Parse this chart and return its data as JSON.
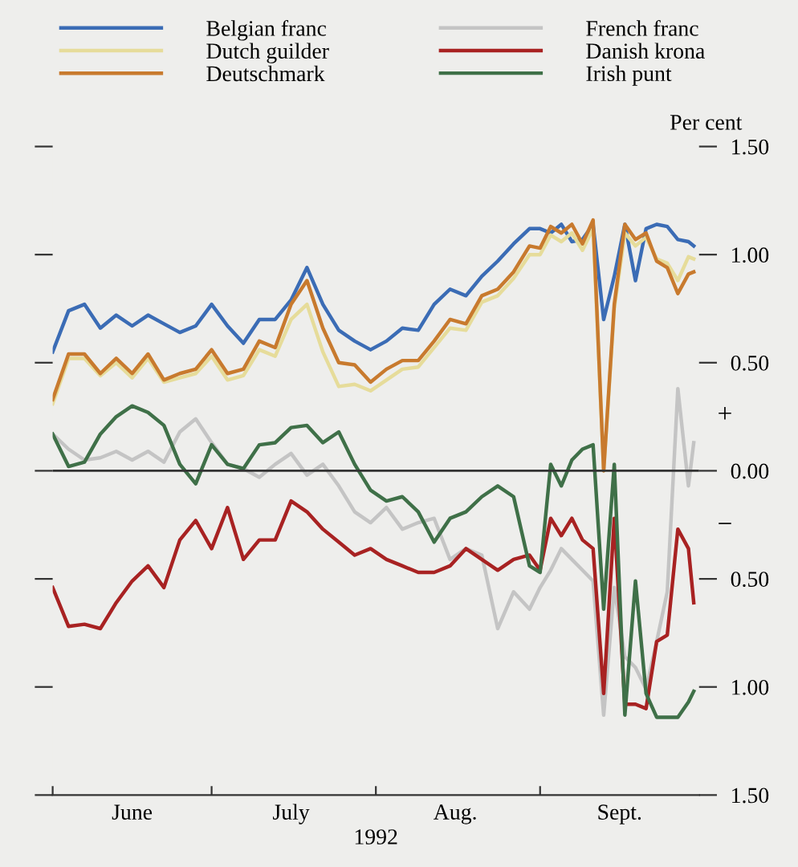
{
  "chart_data": {
    "type": "line",
    "xlabel": "1992",
    "ylabel": "Per cent",
    "x": [
      "1992-06-01",
      "1992-06-04",
      "1992-06-07",
      "1992-06-10",
      "1992-06-13",
      "1992-06-16",
      "1992-06-19",
      "1992-06-22",
      "1992-06-25",
      "1992-06-28",
      "1992-07-01",
      "1992-07-04",
      "1992-07-07",
      "1992-07-10",
      "1992-07-13",
      "1992-07-16",
      "1992-07-19",
      "1992-07-22",
      "1992-07-25",
      "1992-07-28",
      "1992-07-31",
      "1992-08-03",
      "1992-08-06",
      "1992-08-09",
      "1992-08-12",
      "1992-08-15",
      "1992-08-18",
      "1992-08-21",
      "1992-08-24",
      "1992-08-27",
      "1992-08-30",
      "1992-09-01",
      "1992-09-03",
      "1992-09-05",
      "1992-09-07",
      "1992-09-09",
      "1992-09-11",
      "1992-09-13",
      "1992-09-15",
      "1992-09-17",
      "1992-09-19",
      "1992-09-21",
      "1992-09-23",
      "1992-09-25",
      "1992-09-27",
      "1992-09-29",
      "1992-09-30"
    ],
    "series": [
      {
        "name": "Belgian franc",
        "color": "#3b6cb5",
        "values": [
          0.55,
          0.74,
          0.77,
          0.66,
          0.72,
          0.67,
          0.72,
          0.68,
          0.64,
          0.67,
          0.77,
          0.67,
          0.59,
          0.7,
          0.7,
          0.79,
          0.94,
          0.77,
          0.65,
          0.6,
          0.56,
          0.6,
          0.66,
          0.65,
          0.77,
          0.84,
          0.81,
          0.9,
          0.97,
          1.05,
          1.12,
          1.12,
          1.1,
          1.14,
          1.06,
          1.07,
          1.14,
          0.7,
          0.9,
          1.14,
          0.88,
          1.12,
          1.14,
          1.13,
          1.07,
          1.06,
          1.04
        ]
      },
      {
        "name": "Dutch guilder",
        "color": "#e6dc9a",
        "values": [
          0.31,
          0.52,
          0.52,
          0.44,
          0.5,
          0.43,
          0.52,
          0.41,
          0.43,
          0.45,
          0.53,
          0.42,
          0.44,
          0.56,
          0.53,
          0.7,
          0.77,
          0.55,
          0.39,
          0.4,
          0.37,
          0.42,
          0.47,
          0.48,
          0.57,
          0.66,
          0.65,
          0.78,
          0.81,
          0.89,
          1.0,
          1.0,
          1.09,
          1.06,
          1.1,
          1.02,
          1.12,
          0.0,
          0.75,
          1.1,
          1.04,
          1.08,
          0.98,
          0.96,
          0.88,
          0.99,
          0.98
        ]
      },
      {
        "name": "Deutschmark",
        "color": "#c87a2e",
        "values": [
          0.33,
          0.54,
          0.54,
          0.45,
          0.52,
          0.45,
          0.54,
          0.42,
          0.45,
          0.47,
          0.56,
          0.45,
          0.47,
          0.6,
          0.57,
          0.77,
          0.88,
          0.66,
          0.5,
          0.49,
          0.41,
          0.47,
          0.51,
          0.51,
          0.6,
          0.7,
          0.68,
          0.81,
          0.84,
          0.92,
          1.04,
          1.03,
          1.13,
          1.1,
          1.14,
          1.05,
          1.16,
          0.0,
          0.77,
          1.14,
          1.07,
          1.1,
          0.97,
          0.94,
          0.82,
          0.91,
          0.92
        ]
      },
      {
        "name": "French franc",
        "color": "#c4c4c4",
        "values": [
          0.17,
          0.1,
          0.05,
          0.06,
          0.09,
          0.05,
          0.09,
          0.04,
          0.18,
          0.24,
          0.13,
          0.03,
          0.01,
          -0.03,
          0.03,
          0.08,
          -0.02,
          0.03,
          -0.07,
          -0.19,
          -0.24,
          -0.17,
          -0.27,
          -0.24,
          -0.22,
          -0.41,
          -0.36,
          -0.39,
          -0.73,
          -0.56,
          -0.64,
          -0.54,
          -0.46,
          -0.36,
          -0.41,
          -0.46,
          -0.51,
          -1.13,
          -0.54,
          -0.86,
          -0.91,
          -1.01,
          -0.79,
          -0.56,
          0.38,
          -0.07,
          0.13
        ]
      },
      {
        "name": "Danish krona",
        "color": "#a82222",
        "values": [
          -0.54,
          -0.72,
          -0.71,
          -0.73,
          -0.61,
          -0.51,
          -0.44,
          -0.54,
          -0.32,
          -0.23,
          -0.36,
          -0.17,
          -0.41,
          -0.32,
          -0.32,
          -0.14,
          -0.19,
          -0.27,
          -0.33,
          -0.39,
          -0.36,
          -0.41,
          -0.44,
          -0.47,
          -0.47,
          -0.44,
          -0.36,
          -0.41,
          -0.46,
          -0.41,
          -0.39,
          -0.46,
          -0.22,
          -0.3,
          -0.22,
          -0.32,
          -0.36,
          -1.03,
          -0.22,
          -1.08,
          -1.08,
          -1.1,
          -0.79,
          -0.76,
          -0.27,
          -0.36,
          -0.61
        ]
      },
      {
        "name": "Irish punt",
        "color": "#3f7048",
        "values": [
          0.17,
          0.02,
          0.04,
          0.17,
          0.25,
          0.3,
          0.27,
          0.21,
          0.03,
          -0.06,
          0.12,
          0.03,
          0.01,
          0.12,
          0.13,
          0.2,
          0.21,
          0.13,
          0.18,
          0.03,
          -0.09,
          -0.14,
          -0.12,
          -0.19,
          -0.33,
          -0.22,
          -0.19,
          -0.12,
          -0.07,
          -0.12,
          -0.44,
          -0.47,
          0.03,
          -0.07,
          0.05,
          0.1,
          0.12,
          -0.64,
          0.03,
          -1.13,
          -0.51,
          -1.03,
          -1.14,
          -1.14,
          -1.14,
          -1.07,
          -1.02
        ]
      }
    ],
    "xlim": [
      "1992-06-01",
      "1992-10-01"
    ],
    "xticks": [
      {
        "value": "1992-06-01",
        "label": null
      },
      {
        "value": "1992-06-16",
        "label": "June"
      },
      {
        "value": "1992-07-01",
        "label": null
      },
      {
        "value": "1992-07-16",
        "label": "July"
      },
      {
        "value": "1992-08-01",
        "label": null
      },
      {
        "value": "1992-08-16",
        "label": "Aug."
      },
      {
        "value": "1992-09-01",
        "label": null
      },
      {
        "value": "1992-09-16",
        "label": "Sept."
      }
    ],
    "ylim": [
      -1.5,
      1.5
    ],
    "yticks": [
      {
        "value": 1.5,
        "label": "1.50"
      },
      {
        "value": 1.0,
        "label": "1.00"
      },
      {
        "value": 0.5,
        "label": "0.50"
      },
      {
        "value": 0.0,
        "label": "0.00"
      },
      {
        "value": -0.5,
        "label": "0.50"
      },
      {
        "value": -1.0,
        "label": "1.00"
      },
      {
        "value": -1.5,
        "label": "1.50"
      }
    ],
    "ref_lines": [
      {
        "axis": "y",
        "value": 0,
        "color": "#333333"
      }
    ],
    "annotations": [
      "+",
      "−"
    ],
    "legend": "top",
    "grid": false,
    "marker": "none",
    "line_style": "solid"
  }
}
